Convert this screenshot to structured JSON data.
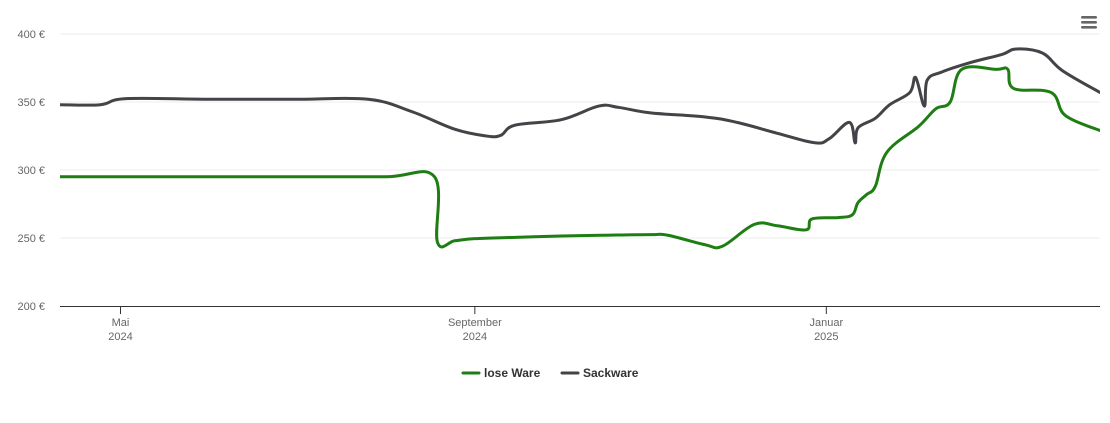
{
  "chart_data": {
    "type": "line",
    "title": "",
    "xlabel": "",
    "ylabel": "",
    "y_unit": "€",
    "ylim": [
      200,
      400
    ],
    "yticks": [
      {
        "value": 200,
        "label": "200 €"
      },
      {
        "value": 250,
        "label": "250 €"
      },
      {
        "value": 300,
        "label": "300 €"
      },
      {
        "value": 350,
        "label": "350 €"
      },
      {
        "value": 400,
        "label": "400 €"
      }
    ],
    "xlim": [
      "2024-04-10",
      "2025-04-06"
    ],
    "xticks": [
      {
        "date": "2024-05-01",
        "label1": "Mai",
        "label2": "2024"
      },
      {
        "date": "2024-09-01",
        "label1": "September",
        "label2": "2024"
      },
      {
        "date": "2025-01-01",
        "label1": "Januar",
        "label2": "2025"
      }
    ],
    "grid": true,
    "legend_position": "bottom-center",
    "series": [
      {
        "name": "lose Ware",
        "color": "#1e7d13",
        "points": [
          [
            "2024-04-10",
            295
          ],
          [
            "2024-05-01",
            295
          ],
          [
            "2024-06-01",
            295
          ],
          [
            "2024-07-01",
            295
          ],
          [
            "2024-08-01",
            295
          ],
          [
            "2024-08-18",
            295
          ],
          [
            "2024-08-19",
            247
          ],
          [
            "2024-08-25",
            248
          ],
          [
            "2024-09-01",
            249.5
          ],
          [
            "2024-09-15",
            250.5
          ],
          [
            "2024-10-01",
            251.5
          ],
          [
            "2024-10-15",
            252
          ],
          [
            "2024-11-01",
            252.5
          ],
          [
            "2024-11-07",
            252
          ],
          [
            "2024-11-20",
            245
          ],
          [
            "2024-11-26",
            244
          ],
          [
            "2024-12-07",
            260
          ],
          [
            "2024-12-15",
            259
          ],
          [
            "2024-12-25",
            256
          ],
          [
            "2024-12-27",
            264
          ],
          [
            "2025-01-05",
            265
          ],
          [
            "2025-01-10",
            267
          ],
          [
            "2025-01-12",
            276
          ],
          [
            "2025-01-15",
            282
          ],
          [
            "2025-01-18",
            288
          ],
          [
            "2025-01-22",
            313
          ],
          [
            "2025-02-02",
            332
          ],
          [
            "2025-02-08",
            345
          ],
          [
            "2025-02-13",
            350
          ],
          [
            "2025-02-17",
            374
          ],
          [
            "2025-03-01",
            374
          ],
          [
            "2025-03-05",
            374
          ],
          [
            "2025-03-07",
            360
          ],
          [
            "2025-03-20",
            357
          ],
          [
            "2025-03-25",
            340
          ],
          [
            "2025-04-06",
            329
          ]
        ]
      },
      {
        "name": "Sackware",
        "color": "#434348",
        "points": [
          [
            "2024-04-10",
            348
          ],
          [
            "2024-04-24",
            348
          ],
          [
            "2024-05-03",
            352.5
          ],
          [
            "2024-06-01",
            352
          ],
          [
            "2024-07-01",
            352
          ],
          [
            "2024-07-26",
            352
          ],
          [
            "2024-08-10",
            343
          ],
          [
            "2024-08-25",
            330
          ],
          [
            "2024-09-05",
            325
          ],
          [
            "2024-09-10",
            325.5
          ],
          [
            "2024-09-15",
            333
          ],
          [
            "2024-10-01",
            337
          ],
          [
            "2024-10-14",
            347
          ],
          [
            "2024-10-21",
            346
          ],
          [
            "2024-11-01",
            342
          ],
          [
            "2024-11-20",
            339
          ],
          [
            "2024-12-01",
            335
          ],
          [
            "2024-12-15",
            327
          ],
          [
            "2024-12-28",
            320
          ],
          [
            "2025-01-02",
            323
          ],
          [
            "2025-01-09",
            335
          ],
          [
            "2025-01-11",
            320
          ],
          [
            "2025-01-12",
            331
          ],
          [
            "2025-01-18",
            338
          ],
          [
            "2025-01-23",
            348
          ],
          [
            "2025-01-30",
            357
          ],
          [
            "2025-02-01",
            368
          ],
          [
            "2025-02-04",
            347
          ],
          [
            "2025-02-05",
            366
          ],
          [
            "2025-02-10",
            372
          ],
          [
            "2025-02-20",
            379
          ],
          [
            "2025-03-03",
            385
          ],
          [
            "2025-03-08",
            389
          ],
          [
            "2025-03-17",
            386
          ],
          [
            "2025-03-24",
            373
          ],
          [
            "2025-04-06",
            357
          ]
        ]
      }
    ]
  },
  "toolbar": {
    "menu_icon": "hamburger-icon"
  }
}
